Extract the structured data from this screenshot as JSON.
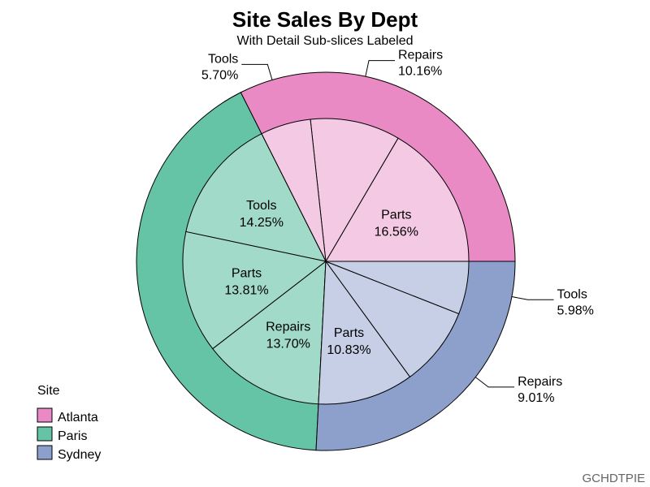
{
  "chart_data": {
    "type": "pie",
    "title": "Site Sales By Dept",
    "subtitle": "With Detail Sub-slices Labeled",
    "legend": {
      "title": "Site",
      "placement": "bottom-left",
      "entries": [
        "Atlanta",
        "Paris",
        "Sydney"
      ]
    },
    "series": [
      {
        "name": "Atlanta",
        "color": "#E98AC5",
        "inner_color": "#F4C9E3",
        "slices": [
          {
            "label": "Parts",
            "value": 16.56,
            "display": "16.56%"
          },
          {
            "label": "Repairs",
            "value": 10.16,
            "display": "10.16%"
          },
          {
            "label": "Tools",
            "value": 5.7,
            "display": "5.70%"
          }
        ]
      },
      {
        "name": "Paris",
        "color": "#66C4A6",
        "inner_color": "#A1DAC8",
        "slices": [
          {
            "label": "Tools",
            "value": 14.25,
            "display": "14.25%"
          },
          {
            "label": "Parts",
            "value": 13.81,
            "display": "13.81%"
          },
          {
            "label": "Repairs",
            "value": 13.7,
            "display": "13.70%"
          }
        ]
      },
      {
        "name": "Sydney",
        "color": "#8DA0CB",
        "inner_color": "#C6CFE5",
        "slices": [
          {
            "label": "Parts",
            "value": 10.83,
            "display": "10.83%"
          },
          {
            "label": "Repairs",
            "value": 9.01,
            "display": "9.01%"
          },
          {
            "label": "Tools",
            "value": 5.98,
            "display": "5.98%"
          }
        ]
      }
    ]
  },
  "footer": "GCHDTPIE"
}
